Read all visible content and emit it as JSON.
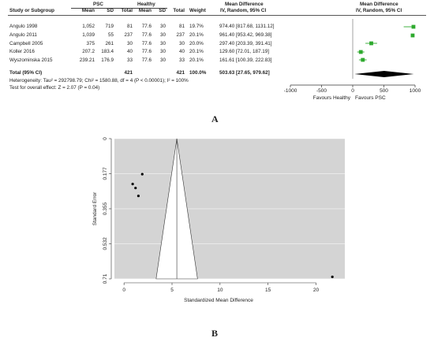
{
  "panel_a": {
    "label": "A",
    "header": {
      "group1": "PSC",
      "group2": "Healthy",
      "md_title": "Mean Difference",
      "md_sub": "IV, Random, 95% CI",
      "plot_title": "Mean Difference",
      "plot_sub": "IV, Random, 95% CI",
      "col_study": "Study or Subgroup",
      "col_mean1": "Mean",
      "col_sd1": "SD",
      "col_total1": "Total",
      "col_mean2": "Mean",
      "col_sd2": "SD",
      "col_total2": "Total",
      "col_weight": "Weight"
    },
    "studies": [
      {
        "name": "Angulo 1998",
        "mean1": "1,052",
        "sd1": "719",
        "n1": "81",
        "mean2": "77.6",
        "sd2": "30",
        "n2": "81",
        "weight": "19.7%",
        "ci": "974.40 [817.68, 1131.12]"
      },
      {
        "name": "Angulo 2011",
        "mean1": "1,039",
        "sd1": "55",
        "n1": "237",
        "mean2": "77.6",
        "sd2": "30",
        "n2": "237",
        "weight": "20.1%",
        "ci": "961.40 [953.42, 969.38]"
      },
      {
        "name": "Campbell 2005",
        "mean1": "375",
        "sd1": "261",
        "n1": "30",
        "mean2": "77.6",
        "sd2": "30",
        "n2": "30",
        "weight": "20.0%",
        "ci": "297.40 [203.39, 391.41]"
      },
      {
        "name": "Koller 2016",
        "mean1": "207.2",
        "sd1": "183.4",
        "n1": "40",
        "mean2": "77.6",
        "sd2": "30",
        "n2": "40",
        "weight": "20.1%",
        "ci": "129.60 [72.01, 187.19]"
      },
      {
        "name": "Wyszominska 2015",
        "mean1": "239.21",
        "sd1": "176.9",
        "n1": "33",
        "mean2": "77.6",
        "sd2": "30",
        "n2": "33",
        "weight": "20.1%",
        "ci": "161.61 [100.39, 222.83]"
      }
    ],
    "total": {
      "name": "Total (95% CI)",
      "n1": "421",
      "n2": "421",
      "weight": "100.0%",
      "ci": "503.63 [27.65, 979.62]"
    },
    "heterogeneity": "Heterogeneity: Tau² = 292798.79; Chi² = 1580.88, df = 4 (P < 0.00001); I² = 100%",
    "overall_test": "Test for overall effect: Z = 2.07 (P = 0.04)",
    "axis_ticks": [
      "-1000",
      "-500",
      "0",
      "500",
      "1000"
    ],
    "favours_left": "Favours Healthy",
    "favours_right": "Favours PSC",
    "colors": {
      "marker": "#2eaa2e",
      "diamond": "#000000"
    }
  },
  "panel_b": {
    "label": "B",
    "xlabel": "Standardized Mean Difference",
    "ylabel": "Standard Error",
    "x_ticks": [
      "0",
      "5",
      "10",
      "15",
      "20"
    ],
    "y_ticks": [
      "0",
      "0.177",
      "0.355",
      "0.532",
      "0.71"
    ],
    "colors": {
      "background": "#d4d4d4",
      "funnel": "#ffffff",
      "points": "#000000"
    }
  },
  "chart_data": [
    {
      "type": "forest",
      "studies": [
        "Angulo 1998",
        "Angulo 2011",
        "Campbell 2005",
        "Koller 2016",
        "Wyszominska 2015"
      ],
      "estimate": [
        974.4,
        961.4,
        297.4,
        129.6,
        161.61
      ],
      "ci_low": [
        817.68,
        953.42,
        203.39,
        72.01,
        100.39
      ],
      "ci_high": [
        1131.12,
        969.38,
        391.41,
        187.19,
        222.83
      ],
      "pooled": {
        "estimate": 503.63,
        "ci_low": 27.65,
        "ci_high": 979.62
      },
      "xlim": [
        -1000,
        1000
      ]
    },
    {
      "type": "scatter",
      "title": "",
      "xlabel": "Standardized Mean Difference",
      "ylabel": "Standard Error",
      "x": [
        1.9,
        0.9,
        1.2,
        1.5,
        21.7
      ],
      "y": [
        0.18,
        0.23,
        0.25,
        0.29,
        0.7
      ],
      "pooled_smd": 5.5,
      "xlim": [
        -1,
        23
      ],
      "ylim": [
        0,
        0.71
      ],
      "y_reversed": true,
      "grid": true
    }
  ]
}
